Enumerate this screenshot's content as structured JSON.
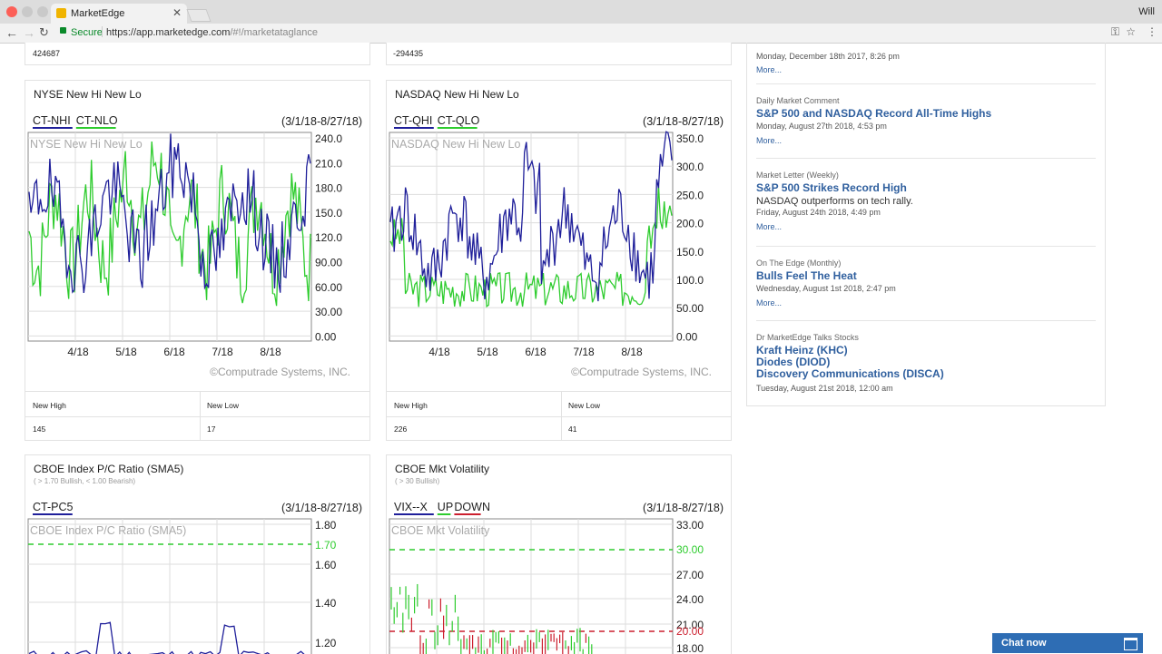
{
  "browser": {
    "tab_title": "MarketEdge",
    "secure_label": "Secure",
    "url_host": "https://app.marketedge.com",
    "url_path": "/#!/marketataglance",
    "user_label": "Will"
  },
  "top_values": {
    "left": "424687",
    "right": "-294435"
  },
  "cards": {
    "nyse": {
      "title": "NYSE New Hi New Lo",
      "series_a": "CT-NHI",
      "series_b": "CT-NLO",
      "range": "(3/1/18-8/27/18)",
      "watermark": "NYSE New Hi New Lo",
      "y_ticks": [
        "240.0",
        "210.0",
        "180.0",
        "150.0",
        "120.0",
        "90.00",
        "60.00",
        "30.00",
        "0.00"
      ],
      "x_ticks": [
        "4/18",
        "5/18",
        "6/18",
        "7/18",
        "8/18"
      ],
      "copyright": "©Computrade Systems, INC.",
      "new_high_label": "New High",
      "new_low_label": "New Low",
      "new_high": "145",
      "new_low": "17"
    },
    "nasdaq": {
      "title": "NASDAQ New Hi New Lo",
      "series_a": "CT-QHI",
      "series_b": "CT-QLO",
      "range": "(3/1/18-8/27/18)",
      "watermark": "NASDAQ New Hi New Lo",
      "y_ticks": [
        "350.0",
        "300.0",
        "250.0",
        "200.0",
        "150.0",
        "100.0",
        "50.00",
        "0.00"
      ],
      "x_ticks": [
        "4/18",
        "5/18",
        "6/18",
        "7/18",
        "8/18"
      ],
      "copyright": "©Computrade Systems, INC.",
      "new_high_label": "New High",
      "new_low_label": "New Low",
      "new_high": "226",
      "new_low": "41"
    },
    "cboe_pc": {
      "title": "CBOE Index P/C Ratio (SMA5)",
      "subtitle": "( > 1.70 Bullish, < 1.00 Bearish)",
      "series_a": "CT-PC5",
      "range": "(3/1/18-8/27/18)",
      "watermark": "CBOE Index P/C Ratio (SMA5)",
      "y_ticks": [
        "1.80",
        "1.60",
        "1.40",
        "1.20"
      ],
      "ref_label": "1.70"
    },
    "cboe_vix": {
      "title": "CBOE Mkt Volatility",
      "subtitle": "( > 30 Bullish)",
      "series_a": "VIX--X",
      "series_b": "UP",
      "series_c": "DOWN",
      "range": "(3/1/18-8/27/18)",
      "watermark": "CBOE Mkt Volatility",
      "y_ticks": [
        "33.00",
        "27.00",
        "24.00",
        "21.00",
        "18.00"
      ],
      "ref_hi": "30.00",
      "ref_lo": "20.00"
    }
  },
  "news": [
    {
      "category": "",
      "headline": "",
      "desc": "",
      "date": "Monday, December 18th 2017, 8:26 pm",
      "more": "More..."
    },
    {
      "category": "Daily Market Comment",
      "headline": "S&P 500 and NASDAQ Record All-Time Highs",
      "desc": "",
      "date": "Monday, August 27th 2018, 4:53 pm",
      "more": "More..."
    },
    {
      "category": "Market Letter (Weekly)",
      "headline": "S&P 500 Strikes Record High",
      "desc": "NASDAQ outperforms on tech rally.",
      "date": "Friday, August 24th 2018, 4:49 pm",
      "more": "More..."
    },
    {
      "category": "On The Edge (Monthly)",
      "headline": "Bulls Feel The Heat",
      "desc": "",
      "date": "Wednesday, August 1st 2018, 2:47 pm",
      "more": "More..."
    },
    {
      "category": "Dr MarketEdge Talks Stocks",
      "headlines": [
        "Kraft Heinz (KHC)",
        "Diodes (DIOD)",
        "Discovery Communications (DISCA)"
      ],
      "date": "Tuesday, August 21st 2018, 12:00 am"
    }
  ],
  "chat": {
    "label": "Chat now"
  },
  "colors": {
    "blue_series": "#1f1f9a",
    "green_series": "#2ecc2e",
    "red_series": "#cc1f2e",
    "link": "#2f5f9e"
  }
}
